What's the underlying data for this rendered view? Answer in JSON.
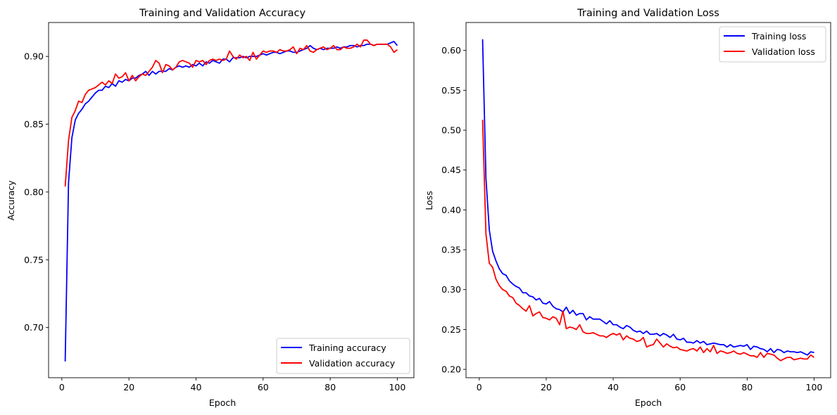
{
  "chart_data": [
    {
      "type": "line",
      "title": "Training and Validation Accuracy",
      "xlabel": "Epoch",
      "ylabel": "Accuracy",
      "xlim": [
        -3.95,
        104.95
      ],
      "ylim": [
        0.663,
        0.925
      ],
      "x_ticks": [
        0,
        20,
        40,
        60,
        80,
        100
      ],
      "y_ticks": [
        0.7,
        0.75,
        0.8,
        0.85,
        0.9
      ],
      "x_tick_labels": [
        "0",
        "20",
        "40",
        "60",
        "80",
        "100"
      ],
      "y_tick_labels": [
        "0.70",
        "0.75",
        "0.80",
        "0.85",
        "0.90"
      ],
      "grid": false,
      "legend_position": "bottom-right",
      "x": [
        1,
        2,
        3,
        4,
        5,
        6,
        7,
        8,
        9,
        10,
        11,
        12,
        13,
        14,
        15,
        16,
        17,
        18,
        19,
        20,
        21,
        22,
        23,
        24,
        25,
        26,
        27,
        28,
        29,
        30,
        31,
        32,
        33,
        34,
        35,
        36,
        37,
        38,
        39,
        40,
        41,
        42,
        43,
        44,
        45,
        46,
        47,
        48,
        49,
        50,
        51,
        52,
        53,
        54,
        55,
        56,
        57,
        58,
        59,
        60,
        61,
        62,
        63,
        64,
        65,
        66,
        67,
        68,
        69,
        70,
        71,
        72,
        73,
        74,
        75,
        76,
        77,
        78,
        79,
        80,
        81,
        82,
        83,
        84,
        85,
        86,
        87,
        88,
        89,
        90,
        91,
        92,
        93,
        94,
        95,
        96,
        97,
        98,
        99,
        100
      ],
      "series": [
        {
          "name": "Training accuracy",
          "color": "#0000ff",
          "values": [
            0.675,
            0.807,
            0.84,
            0.853,
            0.858,
            0.861,
            0.865,
            0.867,
            0.87,
            0.873,
            0.875,
            0.875,
            0.878,
            0.877,
            0.88,
            0.878,
            0.882,
            0.881,
            0.883,
            0.882,
            0.884,
            0.884,
            0.886,
            0.887,
            0.889,
            0.886,
            0.889,
            0.887,
            0.889,
            0.889,
            0.889,
            0.891,
            0.89,
            0.892,
            0.893,
            0.892,
            0.893,
            0.892,
            0.894,
            0.893,
            0.895,
            0.893,
            0.896,
            0.895,
            0.897,
            0.896,
            0.895,
            0.898,
            0.898,
            0.896,
            0.899,
            0.899,
            0.899,
            0.9,
            0.899,
            0.9,
            0.9,
            0.9,
            0.901,
            0.902,
            0.901,
            0.902,
            0.903,
            0.903,
            0.902,
            0.903,
            0.904,
            0.904,
            0.903,
            0.903,
            0.904,
            0.905,
            0.906,
            0.908,
            0.906,
            0.905,
            0.906,
            0.905,
            0.906,
            0.906,
            0.906,
            0.907,
            0.906,
            0.907,
            0.907,
            0.908,
            0.908,
            0.907,
            0.908,
            0.908,
            0.909,
            0.909,
            0.908,
            0.909,
            0.909,
            0.909,
            0.909,
            0.91,
            0.911,
            0.908
          ]
        },
        {
          "name": "Validation accuracy",
          "color": "#ff0000",
          "values": [
            0.804,
            0.838,
            0.855,
            0.86,
            0.867,
            0.866,
            0.872,
            0.875,
            0.876,
            0.877,
            0.879,
            0.881,
            0.879,
            0.882,
            0.88,
            0.887,
            0.884,
            0.885,
            0.888,
            0.882,
            0.886,
            0.882,
            0.885,
            0.887,
            0.886,
            0.889,
            0.892,
            0.897,
            0.895,
            0.888,
            0.894,
            0.893,
            0.89,
            0.892,
            0.896,
            0.897,
            0.896,
            0.895,
            0.892,
            0.897,
            0.896,
            0.897,
            0.894,
            0.897,
            0.898,
            0.897,
            0.898,
            0.897,
            0.898,
            0.904,
            0.9,
            0.898,
            0.901,
            0.899,
            0.9,
            0.897,
            0.903,
            0.898,
            0.901,
            0.904,
            0.903,
            0.904,
            0.904,
            0.903,
            0.905,
            0.904,
            0.904,
            0.905,
            0.907,
            0.902,
            0.906,
            0.905,
            0.908,
            0.904,
            0.903,
            0.905,
            0.906,
            0.907,
            0.905,
            0.906,
            0.908,
            0.905,
            0.905,
            0.907,
            0.906,
            0.906,
            0.907,
            0.909,
            0.907,
            0.912,
            0.912,
            0.909,
            0.908,
            0.909,
            0.909,
            0.909,
            0.909,
            0.907,
            0.903,
            0.905
          ]
        }
      ]
    },
    {
      "type": "line",
      "title": "Training and Validation Loss",
      "xlabel": "Epoch",
      "ylabel": "Loss",
      "xlim": [
        -3.95,
        104.95
      ],
      "ylim": [
        0.1895,
        0.635
      ],
      "x_ticks": [
        0,
        20,
        40,
        60,
        80,
        100
      ],
      "y_ticks": [
        0.2,
        0.25,
        0.3,
        0.35,
        0.4,
        0.45,
        0.5,
        0.55,
        0.6
      ],
      "x_tick_labels": [
        "0",
        "20",
        "40",
        "60",
        "80",
        "100"
      ],
      "y_tick_labels": [
        "0.20",
        "0.25",
        "0.30",
        "0.35",
        "0.40",
        "0.45",
        "0.50",
        "0.55",
        "0.60"
      ],
      "grid": false,
      "legend_position": "top-right",
      "x": [
        1,
        2,
        3,
        4,
        5,
        6,
        7,
        8,
        9,
        10,
        11,
        12,
        13,
        14,
        15,
        16,
        17,
        18,
        19,
        20,
        21,
        22,
        23,
        24,
        25,
        26,
        27,
        28,
        29,
        30,
        31,
        32,
        33,
        34,
        35,
        36,
        37,
        38,
        39,
        40,
        41,
        42,
        43,
        44,
        45,
        46,
        47,
        48,
        49,
        50,
        51,
        52,
        53,
        54,
        55,
        56,
        57,
        58,
        59,
        60,
        61,
        62,
        63,
        64,
        65,
        66,
        67,
        68,
        69,
        70,
        71,
        72,
        73,
        74,
        75,
        76,
        77,
        78,
        79,
        80,
        81,
        82,
        83,
        84,
        85,
        86,
        87,
        88,
        89,
        90,
        91,
        92,
        93,
        94,
        95,
        96,
        97,
        98,
        99,
        100
      ],
      "series": [
        {
          "name": "Training loss",
          "color": "#0000ff",
          "values": [
            0.614,
            0.44,
            0.375,
            0.348,
            0.336,
            0.326,
            0.32,
            0.318,
            0.311,
            0.307,
            0.304,
            0.302,
            0.296,
            0.296,
            0.292,
            0.291,
            0.287,
            0.289,
            0.283,
            0.282,
            0.285,
            0.279,
            0.276,
            0.275,
            0.272,
            0.278,
            0.27,
            0.274,
            0.268,
            0.27,
            0.27,
            0.262,
            0.266,
            0.263,
            0.263,
            0.263,
            0.26,
            0.257,
            0.261,
            0.256,
            0.256,
            0.253,
            0.251,
            0.255,
            0.253,
            0.249,
            0.247,
            0.248,
            0.245,
            0.248,
            0.244,
            0.244,
            0.245,
            0.242,
            0.245,
            0.243,
            0.24,
            0.244,
            0.238,
            0.237,
            0.239,
            0.234,
            0.234,
            0.233,
            0.236,
            0.233,
            0.235,
            0.231,
            0.232,
            0.233,
            0.232,
            0.231,
            0.231,
            0.228,
            0.231,
            0.228,
            0.229,
            0.23,
            0.229,
            0.231,
            0.225,
            0.229,
            0.228,
            0.226,
            0.225,
            0.222,
            0.226,
            0.221,
            0.225,
            0.224,
            0.221,
            0.223,
            0.222,
            0.222,
            0.221,
            0.222,
            0.22,
            0.218,
            0.222,
            0.221
          ]
        },
        {
          "name": "Validation loss",
          "color": "#ff0000",
          "values": [
            0.513,
            0.37,
            0.333,
            0.328,
            0.313,
            0.305,
            0.3,
            0.298,
            0.292,
            0.29,
            0.283,
            0.28,
            0.276,
            0.273,
            0.28,
            0.267,
            0.27,
            0.272,
            0.265,
            0.264,
            0.262,
            0.266,
            0.264,
            0.256,
            0.273,
            0.251,
            0.253,
            0.252,
            0.25,
            0.256,
            0.247,
            0.245,
            0.245,
            0.246,
            0.244,
            0.242,
            0.242,
            0.24,
            0.243,
            0.245,
            0.243,
            0.245,
            0.237,
            0.242,
            0.239,
            0.238,
            0.235,
            0.236,
            0.24,
            0.228,
            0.23,
            0.231,
            0.238,
            0.233,
            0.228,
            0.232,
            0.229,
            0.227,
            0.228,
            0.225,
            0.224,
            0.223,
            0.225,
            0.226,
            0.223,
            0.228,
            0.221,
            0.226,
            0.222,
            0.23,
            0.22,
            0.223,
            0.222,
            0.22,
            0.221,
            0.223,
            0.22,
            0.219,
            0.221,
            0.219,
            0.217,
            0.217,
            0.215,
            0.221,
            0.215,
            0.22,
            0.219,
            0.218,
            0.214,
            0.211,
            0.213,
            0.215,
            0.215,
            0.212,
            0.213,
            0.214,
            0.213,
            0.213,
            0.218,
            0.215
          ]
        }
      ]
    }
  ]
}
